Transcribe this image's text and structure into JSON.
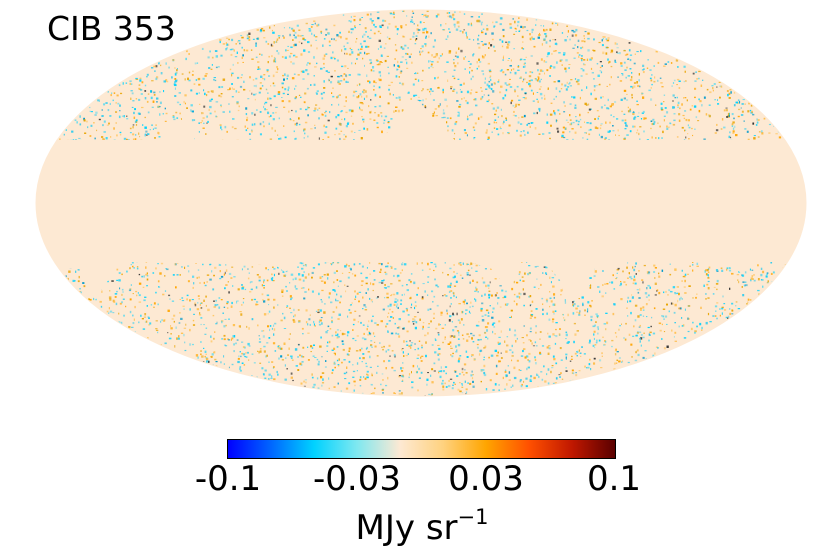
{
  "title": "CIB 353",
  "map": {
    "projection": "Mollweide",
    "masked_fill": "#fde9d3",
    "masked_region": "galactic plane band"
  },
  "colorbar": {
    "ticks": [
      "-0.1",
      "-0.03",
      "0.03",
      "0.1"
    ],
    "unit_text": "MJy sr",
    "unit_exponent": "−1",
    "colors": [
      "#0000ff",
      "#0066ff",
      "#00d2ff",
      "#7fe8f0",
      "#fde9d3",
      "#ffd27f",
      "#ffa500",
      "#ff5000",
      "#c01800",
      "#5a0000"
    ]
  }
}
